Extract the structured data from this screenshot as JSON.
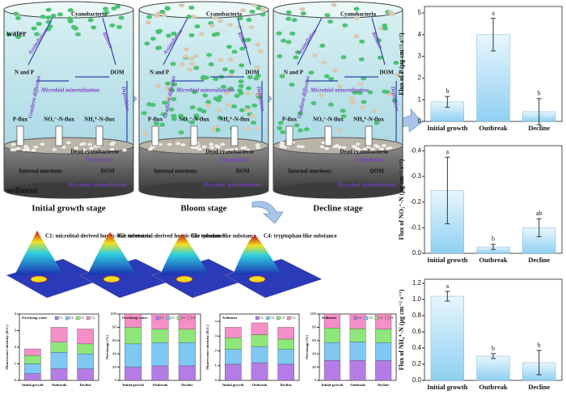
{
  "diagram": {
    "water_label": "water",
    "sediment_label": "sediment",
    "panels": [
      {
        "stage": "Initial growth stage",
        "labels": {
          "cyano": "Cyanobacteria",
          "assim": "Assimilation",
          "release": "Release",
          "np": "N and P",
          "dom": "DOM",
          "micro": "Microbial mineralization",
          "deposition": "Deposition",
          "pflux": "P-flux",
          "no3": "NO₃⁻-N-flux",
          "nh4": "NH₄⁺-N-flux",
          "gradient": "Gradient diffusion",
          "dead": "Dead cyanobacteria",
          "degradation": "Degradation",
          "internal": "Internal nutrients",
          "dom2": "DOM",
          "micro2": "Microbial mineralization"
        }
      },
      {
        "stage": "Bloom stage",
        "labels": {
          "cyano": "Cyanobacteria",
          "assim": "Assimilation",
          "release": "Release",
          "np": "N and P",
          "dom": "DOM",
          "micro": "Microbial mineralization",
          "deposition": "Deposition",
          "pflux": "P-flux",
          "no3": "NO₃⁻-N-flux",
          "nh4": "NH₄⁺-N-flux",
          "gradient": "Gradient diffusion",
          "dead": "Dead cyanobacteria",
          "degradation": "Degradation",
          "internal": "Internal nutrients",
          "dom2": "DOM",
          "micro2": "Microbial mineralization"
        }
      },
      {
        "stage": "Decline stage",
        "labels": {
          "cyano": "Cyanobacteria",
          "assim": "Assimilation",
          "release": "Release",
          "np": "N and P",
          "dom": "DOM",
          "micro": "Microbial mineralization",
          "deposition": "Deposition",
          "pflux": "P-flux",
          "no3": "NO₃⁻-N-flux",
          "nh4": "NH₄⁺-N-flux",
          "gradient": "Gradient diffusion",
          "dead": "Dead cyanobacteria",
          "degradation": "Degradation",
          "internal": "Internal nutrients",
          "dom2": "DOM",
          "micro2": "Microbial mineralization"
        }
      }
    ],
    "components": [
      "C1: microbial-derived humic-like substance",
      "C2: terrestrial-derived humic-like substance",
      "C3: tyrosine-like substance",
      "C4: tryptophan-like substance"
    ]
  },
  "chart_data": [
    {
      "type": "bar",
      "ylabel": "Flux of P (μg cm⁻² s⁻¹)",
      "categories": [
        "Initial growth",
        "Outbreak",
        "Decline"
      ],
      "values": [
        0.9,
        4.0,
        0.45
      ],
      "errors": [
        0.25,
        0.75,
        0.6
      ],
      "letters": [
        "b",
        "a",
        "b"
      ],
      "color": "#bfe3f7",
      "ylim": [
        0,
        5.3
      ],
      "yticks": [
        0,
        1,
        2,
        3,
        4,
        5
      ]
    },
    {
      "type": "bar",
      "ylabel": "Flux of NO₃⁻-N (μg cm⁻² s⁻¹)",
      "categories": [
        "Initial growth",
        "Outbreak",
        "Decline"
      ],
      "values": [
        -0.245,
        -0.025,
        -0.1
      ],
      "errors": [
        0.13,
        0.01,
        0.035
      ],
      "letters": [
        "a",
        "b",
        "ab"
      ],
      "color": "#bfe3f7",
      "ylim": [
        0,
        -0.42
      ],
      "yticks": [
        -0.4,
        -0.3,
        -0.2,
        -0.1,
        {
          "value": 0,
          "label": "0.0"
        }
      ]
    },
    {
      "type": "bar",
      "ylabel": "Flux of NH₄⁺-N (μg cm⁻² s⁻¹)",
      "categories": [
        "Initial growth",
        "Outbreak",
        "Decline"
      ],
      "values": [
        1.04,
        0.3,
        0.22
      ],
      "errors": [
        0.06,
        0.03,
        0.15
      ],
      "letters": [
        "a",
        "b",
        "b"
      ],
      "color": "#bfe3f7",
      "ylim": [
        0,
        1.25
      ],
      "yticks": [
        {
          "value": 0,
          "label": "0.0"
        },
        0.2,
        0.4,
        0.6,
        0.8,
        {
          "value": 1,
          "label": "1.0"
        },
        1.2
      ]
    },
    {
      "type": "stacked_bar",
      "title": "Overlying water",
      "ylabel": "Fluorescence intensity (R.U.)",
      "categories": [
        "Initial growth",
        "Outbreak",
        "Decline"
      ],
      "series": [
        {
          "name": "C1",
          "color": "#b57ce6",
          "values": [
            0.4,
            0.7,
            0.7
          ]
        },
        {
          "name": "C2",
          "color": "#7ec8f2",
          "values": [
            0.6,
            1.0,
            0.9
          ]
        },
        {
          "name": "C3",
          "color": "#8fe67a",
          "values": [
            0.5,
            0.6,
            0.6
          ]
        },
        {
          "name": "C4",
          "color": "#f58fc8",
          "values": [
            0.4,
            0.9,
            0.9
          ]
        }
      ],
      "ylim": [
        0,
        4
      ],
      "yticks": [
        0,
        1,
        2,
        3,
        4
      ]
    },
    {
      "type": "stacked_bar",
      "title": "Overlying water",
      "ylabel": "Percentage (%)",
      "categories": [
        "Initial growth",
        "Outbreak",
        "Decline"
      ],
      "series": [
        {
          "name": "C1",
          "color": "#b57ce6",
          "values": [
            20,
            22,
            22
          ]
        },
        {
          "name": "C2",
          "color": "#7ec8f2",
          "values": [
            35,
            35,
            35
          ]
        },
        {
          "name": "C3",
          "color": "#8fe67a",
          "values": [
            25,
            20,
            20
          ]
        },
        {
          "name": "C4",
          "color": "#f58fc8",
          "values": [
            20,
            23,
            23
          ]
        }
      ],
      "ylim": [
        0,
        100
      ],
      "yticks": [
        0,
        20,
        40,
        60,
        80,
        100
      ]
    },
    {
      "type": "stacked_bar",
      "title": "Sediment",
      "ylabel": "Fluorescence intensity (R.U.)",
      "categories": [
        "Initial growth",
        "Outbreak",
        "Decline"
      ],
      "series": [
        {
          "name": "C1",
          "color": "#b57ce6",
          "values": [
            1.1,
            1.2,
            1.1
          ]
        },
        {
          "name": "C2",
          "color": "#7ec8f2",
          "values": [
            1.0,
            1.1,
            1.0
          ]
        },
        {
          "name": "C3",
          "color": "#8fe67a",
          "values": [
            0.8,
            0.8,
            0.7
          ]
        },
        {
          "name": "C4",
          "color": "#f58fc8",
          "values": [
            0.7,
            0.8,
            0.8
          ]
        }
      ],
      "ylim": [
        0,
        4.5
      ],
      "yticks": [
        0,
        1,
        2,
        3,
        4
      ]
    },
    {
      "type": "stacked_bar",
      "title": "Sediment",
      "ylabel": "Percentage (%)",
      "categories": [
        "Initial growth",
        "Outbreak",
        "Decline"
      ],
      "series": [
        {
          "name": "C1",
          "color": "#b57ce6",
          "values": [
            30,
            30,
            30
          ]
        },
        {
          "name": "C2",
          "color": "#7ec8f2",
          "values": [
            27,
            28,
            27
          ]
        },
        {
          "name": "C3",
          "color": "#8fe67a",
          "values": [
            22,
            20,
            20
          ]
        },
        {
          "name": "C4",
          "color": "#f58fc8",
          "values": [
            21,
            22,
            23
          ]
        }
      ],
      "ylim": [
        0,
        100
      ],
      "yticks": [
        0,
        20,
        40,
        60,
        80,
        100
      ]
    }
  ]
}
